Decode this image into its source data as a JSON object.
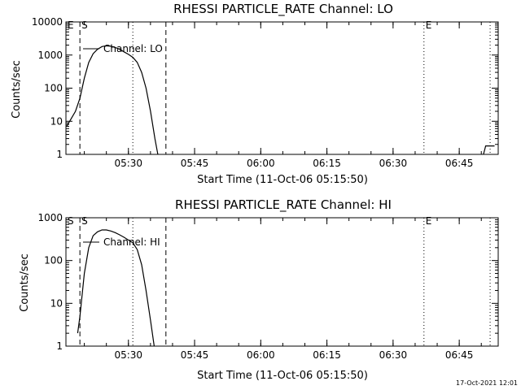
{
  "footer": {
    "date": "17-Oct-2021 12:01"
  },
  "chart_data": [
    {
      "type": "line",
      "title": "RHESSI PARTICLE_RATE Channel: LO",
      "xlabel": "Start Time (11-Oct-06 05:15:50)",
      "ylabel": "Counts/sec",
      "y_scale": "log",
      "ylim": [
        1,
        10000
      ],
      "y_ticks": [
        "1",
        "10",
        "100",
        "1000",
        "10000"
      ],
      "xlim": [
        "05:15:50",
        "06:53:50"
      ],
      "x_ticks": [
        "05:30",
        "05:45",
        "06:00",
        "06:15",
        "06:30",
        "06:45"
      ],
      "legend": "Channel: LO",
      "markers": [
        {
          "time": "05:19:00",
          "style": "dashed",
          "label": "S"
        },
        {
          "time": "05:31:00",
          "style": "dotted",
          "label": ""
        },
        {
          "time": "05:38:30",
          "style": "dashed",
          "label": ""
        },
        {
          "time": "06:37:00",
          "style": "dotted",
          "label": "E"
        },
        {
          "time": "06:52:00",
          "style": "dotted",
          "label": ""
        }
      ],
      "corner_label": "E",
      "series": [
        {
          "name": "Channel: LO",
          "points": [
            [
              "05:16:00",
              7
            ],
            [
              "05:18:00",
              20
            ],
            [
              "05:19:00",
              50
            ],
            [
              "05:20:00",
              200
            ],
            [
              "05:21:00",
              600
            ],
            [
              "05:22:00",
              1100
            ],
            [
              "05:23:00",
              1500
            ],
            [
              "05:24:00",
              1800
            ],
            [
              "05:25:00",
              1900
            ],
            [
              "05:26:00",
              1850
            ],
            [
              "05:27:00",
              1700
            ],
            [
              "05:28:00",
              1500
            ],
            [
              "05:29:00",
              1250
            ],
            [
              "05:30:00",
              1050
            ],
            [
              "05:31:00",
              850
            ],
            [
              "05:32:00",
              600
            ],
            [
              "05:33:00",
              300
            ],
            [
              "05:34:00",
              100
            ],
            [
              "05:35:00",
              20
            ],
            [
              "05:36:00",
              3
            ],
            [
              "05:36:40",
              1
            ]
          ]
        },
        {
          "name": "",
          "points": [
            [
              "06:50:30",
              1
            ],
            [
              "06:51:00",
              1.8
            ],
            [
              "06:53:00",
              1.8
            ]
          ]
        }
      ]
    },
    {
      "type": "line",
      "title": "RHESSI PARTICLE_RATE Channel: HI",
      "xlabel": "Start Time (11-Oct-06 05:15:50)",
      "ylabel": "Counts/sec",
      "y_scale": "log",
      "ylim": [
        1,
        1000
      ],
      "y_ticks": [
        "1",
        "10",
        "100",
        "1000"
      ],
      "xlim": [
        "05:15:50",
        "06:53:50"
      ],
      "x_ticks": [
        "05:30",
        "05:45",
        "06:00",
        "06:15",
        "06:30",
        "06:45"
      ],
      "legend": "Channel: HI",
      "markers": [
        {
          "time": "05:19:00",
          "style": "dashed",
          "label": "S"
        },
        {
          "time": "05:31:00",
          "style": "dotted",
          "label": ""
        },
        {
          "time": "05:38:30",
          "style": "dashed",
          "label": ""
        },
        {
          "time": "06:37:00",
          "style": "dotted",
          "label": "E"
        },
        {
          "time": "06:52:00",
          "style": "dotted",
          "label": ""
        }
      ],
      "corner_label": "S",
      "series": [
        {
          "name": "Channel: HI",
          "points": [
            [
              "05:18:30",
              2
            ],
            [
              "05:19:00",
              5
            ],
            [
              "05:20:00",
              50
            ],
            [
              "05:21:00",
              200
            ],
            [
              "05:22:00",
              380
            ],
            [
              "05:23:00",
              470
            ],
            [
              "05:24:00",
              520
            ],
            [
              "05:25:00",
              520
            ],
            [
              "05:26:00",
              490
            ],
            [
              "05:27:00",
              450
            ],
            [
              "05:28:00",
              400
            ],
            [
              "05:29:00",
              350
            ],
            [
              "05:30:00",
              300
            ],
            [
              "05:31:00",
              260
            ],
            [
              "05:32:00",
              180
            ],
            [
              "05:33:00",
              80
            ],
            [
              "05:34:00",
              20
            ],
            [
              "05:35:00",
              4
            ],
            [
              "05:35:50",
              1
            ]
          ]
        }
      ]
    }
  ]
}
